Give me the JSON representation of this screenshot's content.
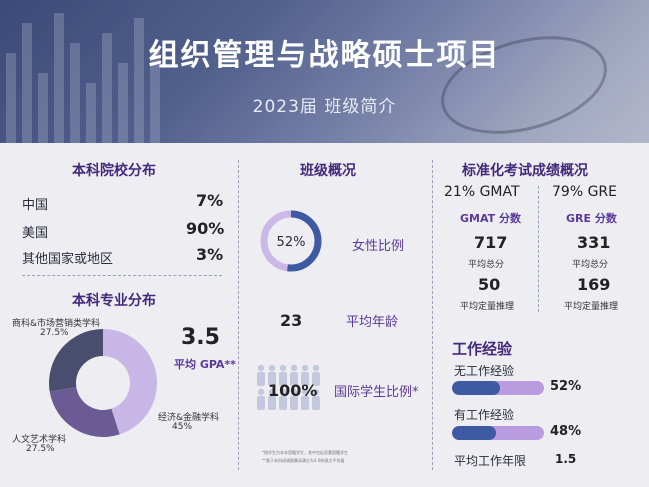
{
  "header": {
    "title": "组织管理与战略硕士项目",
    "subtitle": "2023届 班级简介"
  },
  "undergrad_school": {
    "heading": "本科院校分布",
    "rows": [
      {
        "label": "中国",
        "value": "7%"
      },
      {
        "label": "美国",
        "value": "90%"
      },
      {
        "label": "其他国家或地区",
        "value": "3%"
      }
    ]
  },
  "undergrad_major": {
    "heading": "本科专业分布",
    "slices": [
      {
        "label": "经济&金融学科",
        "pct": "45%",
        "value": 45,
        "color": "#c7b6e6"
      },
      {
        "label": "人文艺术学科",
        "pct": "27.5%",
        "value": 27.5,
        "color": "#6a5b95"
      },
      {
        "label": "商科&市场营销类学科",
        "pct": "27.5%",
        "value": 27.5,
        "color": "#4a4e6e"
      }
    ],
    "gpa_value": "3.5",
    "gpa_label": "平均 GPA**"
  },
  "class_overview": {
    "heading": "班级概况",
    "female_ratio": {
      "value": "52%",
      "fraction": 0.52,
      "label": "女性比例"
    },
    "avg_age": {
      "value": "23",
      "label": "平均年龄"
    },
    "intl_ratio": {
      "value": "100%",
      "label": "国际学生比例*"
    },
    "footnote_1": "*指学生为非本国籍学生，其中包括双重国籍学生",
    "footnote_2": "**基于本科成绩换算成满分为4.0的绩点平均值"
  },
  "test_scores": {
    "heading": "标准化考试成绩概况",
    "gmat": {
      "share": "21% GMAT",
      "label": "GMAT 分数",
      "total": "717",
      "total_label": "平均总分",
      "quant": "50",
      "quant_label": "平均定量推理"
    },
    "gre": {
      "share": "79% GRE",
      "label": "GRE 分数",
      "total": "331",
      "total_label": "平均总分",
      "quant": "169",
      "quant_label": "平均定量推理"
    }
  },
  "work_experience": {
    "heading": "工作经验",
    "none": {
      "label": "无工作经验",
      "value": "52%",
      "fraction": 0.52
    },
    "some": {
      "label": "有工作经验",
      "value": "48%",
      "fraction": 0.48
    },
    "avg_years": {
      "label": "平均工作年限",
      "value": "1.5"
    }
  },
  "colors": {
    "heading": "#43297a",
    "ring": "#3e5aa3",
    "ring_track": "#c9b8e8",
    "bar_fill": "#3e5aa3",
    "bar_track": "#b99ce0"
  }
}
